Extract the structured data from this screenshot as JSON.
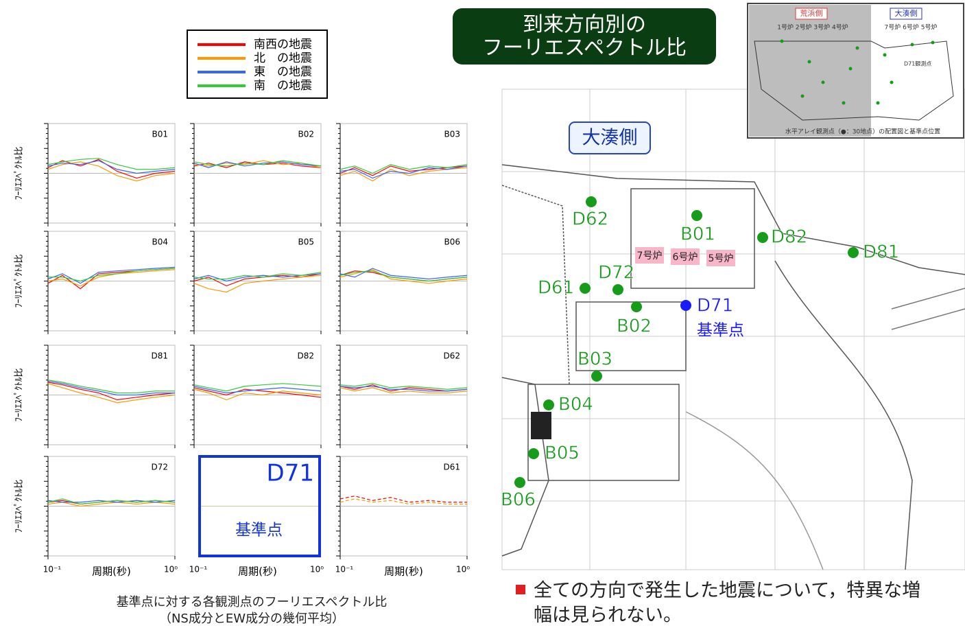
{
  "title": [
    "到来方向別の",
    "フーリエスペクトル比"
  ],
  "legend": [
    {
      "name": "南西の地震",
      "color": "#ff0000"
    },
    {
      "name": "北　の地震",
      "color": "#ff9900"
    },
    {
      "name": "東　の地震",
      "color": "#3366ff"
    },
    {
      "name": "南　の地震",
      "color": "#33cc33"
    }
  ],
  "charts": {
    "xlabel": "周期(秒)",
    "ylabel": "ﾌｰﾘｴｽﾍﾟｸﾄﾙ比",
    "xlim": [
      0.1,
      1
    ],
    "xticks": [
      {
        "value": 0.1,
        "label": "10⁻¹"
      },
      {
        "value": 1,
        "label": "10⁰"
      }
    ],
    "ylim": [
      0.1,
      10
    ],
    "log_scale": true,
    "baseline": 1,
    "x": [
      0.1,
      0.13,
      0.18,
      0.25,
      0.35,
      0.5,
      0.7,
      1
    ],
    "panels": [
      {
        "label": "B01",
        "series": [
          [
            1.3,
            1.8,
            1.4,
            1.9,
            1.1,
            0.8,
            1.0,
            1.1
          ],
          [
            1.2,
            1.5,
            1.7,
            1.4,
            0.9,
            0.7,
            0.9,
            1.0
          ],
          [
            1.4,
            1.6,
            1.5,
            1.8,
            1.2,
            1.0,
            1.1,
            1.2
          ],
          [
            1.5,
            1.7,
            1.9,
            2.0,
            1.5,
            1.2,
            1.2,
            1.3
          ]
        ]
      },
      {
        "label": "B02",
        "series": [
          [
            1.4,
            1.6,
            1.3,
            1.7,
            1.5,
            1.6,
            1.4,
            1.3
          ],
          [
            1.5,
            1.4,
            1.6,
            1.5,
            1.8,
            1.5,
            1.6,
            1.3
          ],
          [
            1.6,
            1.3,
            1.7,
            1.4,
            1.6,
            1.7,
            1.5,
            1.4
          ],
          [
            1.7,
            1.5,
            1.4,
            1.6,
            1.5,
            1.8,
            1.6,
            1.4
          ]
        ]
      },
      {
        "label": "B03",
        "series": [
          [
            1.0,
            1.3,
            0.9,
            1.4,
            1.1,
            1.2,
            1.3,
            1.4
          ],
          [
            0.9,
            1.1,
            0.7,
            1.2,
            0.9,
            1.1,
            1.2,
            1.3
          ],
          [
            1.1,
            1.2,
            0.8,
            1.1,
            1.0,
            1.3,
            1.2,
            1.4
          ],
          [
            1.2,
            1.4,
            1.0,
            1.5,
            1.2,
            1.4,
            1.3,
            1.5
          ]
        ]
      },
      {
        "label": "B04",
        "series": [
          [
            0.9,
            1.3,
            0.7,
            1.4,
            1.5,
            1.6,
            1.7,
            1.8
          ],
          [
            1.0,
            1.1,
            0.8,
            1.2,
            1.4,
            1.5,
            1.6,
            1.7
          ],
          [
            1.1,
            1.4,
            0.9,
            1.5,
            1.6,
            1.7,
            1.8,
            1.9
          ],
          [
            1.2,
            1.2,
            1.0,
            1.3,
            1.4,
            1.6,
            1.7,
            1.8
          ]
        ]
      },
      {
        "label": "B05",
        "series": [
          [
            1.0,
            1.2,
            0.8,
            1.1,
            1.2,
            1.3,
            1.2,
            1.4
          ],
          [
            0.9,
            0.7,
            0.6,
            0.9,
            1.0,
            1.1,
            1.2,
            1.3
          ],
          [
            1.1,
            1.3,
            1.0,
            1.2,
            1.3,
            1.2,
            1.3,
            1.4
          ],
          [
            1.2,
            1.1,
            1.1,
            1.3,
            1.2,
            1.4,
            1.3,
            1.5
          ]
        ]
      },
      {
        "label": "B06",
        "series": [
          [
            1.3,
            1.6,
            1.5,
            1.2,
            1.1,
            1.0,
            1.1,
            1.2
          ],
          [
            1.2,
            1.4,
            1.7,
            1.1,
            1.0,
            0.9,
            1.0,
            1.1
          ],
          [
            1.4,
            1.2,
            1.8,
            1.3,
            1.2,
            1.1,
            1.2,
            1.3
          ],
          [
            1.3,
            1.5,
            1.6,
            1.2,
            1.1,
            1.0,
            1.1,
            1.2
          ]
        ]
      },
      {
        "label": "D81",
        "series": [
          [
            1.8,
            1.6,
            1.3,
            1.1,
            0.8,
            0.9,
            1.0,
            1.1
          ],
          [
            1.7,
            1.4,
            1.1,
            0.9,
            0.7,
            0.8,
            0.9,
            1.0
          ],
          [
            1.9,
            1.7,
            1.4,
            1.2,
            1.0,
            1.0,
            1.1,
            1.1
          ],
          [
            2.0,
            1.8,
            1.5,
            1.3,
            1.1,
            1.1,
            1.2,
            1.2
          ]
        ]
      },
      {
        "label": "D82",
        "series": [
          [
            1.4,
            1.2,
            1.0,
            1.3,
            1.2,
            1.1,
            1.0,
            0.9
          ],
          [
            1.3,
            1.1,
            0.8,
            1.1,
            1.0,
            1.2,
            1.1,
            1.0
          ],
          [
            1.5,
            1.3,
            1.1,
            1.2,
            1.3,
            1.4,
            1.3,
            1.2
          ],
          [
            1.6,
            1.4,
            1.2,
            1.5,
            1.6,
            1.7,
            1.6,
            1.5
          ]
        ]
      },
      {
        "label": "D62",
        "series": [
          [
            1.5,
            1.3,
            1.6,
            1.2,
            1.4,
            1.3,
            1.2,
            1.3
          ],
          [
            1.4,
            1.2,
            1.4,
            1.1,
            1.2,
            1.1,
            1.1,
            1.2
          ],
          [
            1.5,
            1.4,
            1.5,
            1.3,
            1.3,
            1.2,
            1.2,
            1.3
          ],
          [
            1.6,
            1.5,
            1.7,
            1.4,
            1.5,
            1.4,
            1.3,
            1.4
          ]
        ]
      },
      {
        "label": "D72",
        "series": [
          [
            1.2,
            1.3,
            1.1,
            1.2,
            1.3,
            1.2,
            1.3,
            1.2
          ],
          [
            1.1,
            1.2,
            1.0,
            1.1,
            1.2,
            1.1,
            1.2,
            1.1
          ],
          [
            1.3,
            1.2,
            1.2,
            1.3,
            1.2,
            1.3,
            1.2,
            1.3
          ],
          [
            1.2,
            1.4,
            1.1,
            1.2,
            1.3,
            1.2,
            1.3,
            1.2
          ]
        ]
      },
      {
        "label": "D61",
        "series": [
          [
            1.4,
            1.6,
            1.3,
            1.5,
            1.2,
            1.3,
            1.2,
            1.2
          ],
          [
            1.2,
            1.4,
            1.2,
            1.3,
            1.1,
            1.2,
            1.1,
            1.1
          ]
        ]
      }
    ]
  },
  "reference_panel": {
    "label": "D71",
    "text": "基準点"
  },
  "caption": [
    "基準点に対する各観測点のフーリエスペクトル比",
    "（NS成分とEW成分の幾何平均）"
  ],
  "map": {
    "side_label": "大湊側",
    "reactors": [
      "7号炉",
      "6号炉",
      "5号炉"
    ],
    "reference_label": "基準点",
    "points": [
      "D62",
      "B01",
      "D82",
      "D81",
      "D72",
      "D61",
      "B02",
      "D71",
      "B03",
      "B04",
      "B05",
      "B06"
    ]
  },
  "inset": {
    "sides": [
      "荒浜側",
      "大湊側"
    ],
    "units_left": "1号炉 2号炉 3号炉 4号炉",
    "units_right": "7号炉 6号炉 5号炉",
    "station": "D71観測点",
    "caption": "水平アレイ観測点（●：30地点）の配置図と基準点位置"
  },
  "note": "全ての方向で発生した地震について，特異な増幅は見られない。"
}
